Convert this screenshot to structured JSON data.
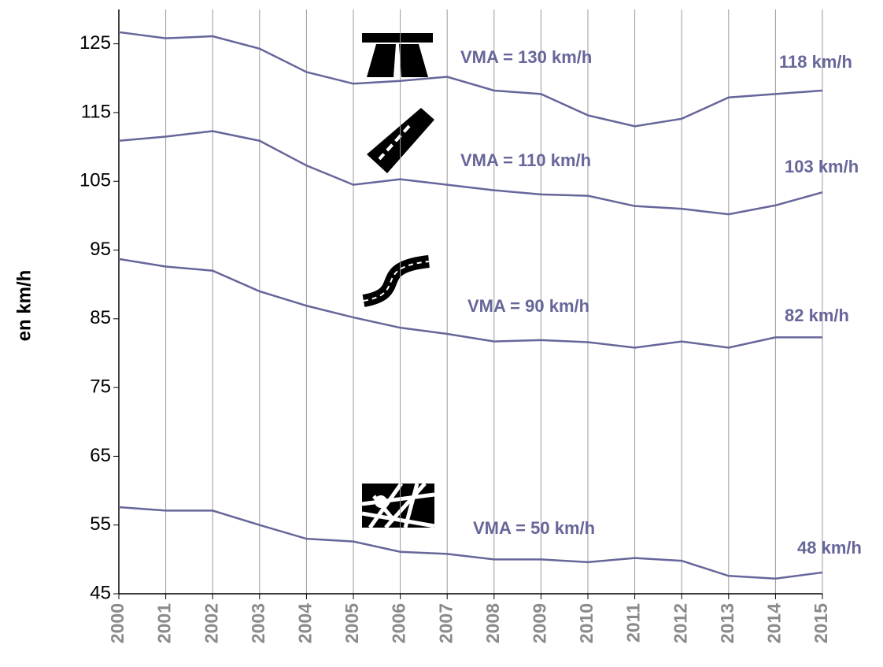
{
  "chart_data": {
    "type": "line",
    "y_label": "en km/h",
    "categories": [
      "2000",
      "2001",
      "2002",
      "2003",
      "2004",
      "2005",
      "2006",
      "2007",
      "2008",
      "2009",
      "2010",
      "2011",
      "2012",
      "2013",
      "2014",
      "2015"
    ],
    "series": [
      {
        "color": "#66669a",
        "annotation": "VMA = 130 km/h",
        "end_label": "118 km/h",
        "values": [
          126.7,
          125.8,
          126.1,
          124.3,
          120.9,
          119.2,
          119.6,
          120.2,
          118.2,
          117.7,
          114.6,
          113.0,
          114.1,
          117.2,
          117.7,
          118.2
        ]
      },
      {
        "color": "#66669a",
        "annotation": "VMA = 110 km/h",
        "end_label": "103 km/h",
        "values": [
          110.9,
          111.5,
          112.3,
          110.9,
          107.3,
          104.5,
          105.3,
          104.5,
          103.7,
          103.1,
          102.9,
          101.4,
          101.0,
          100.2,
          101.5,
          103.4
        ]
      },
      {
        "color": "#66669a",
        "annotation": "VMA = 90 km/h",
        "end_label": "82 km/h",
        "values": [
          93.7,
          92.6,
          92.0,
          89.0,
          86.9,
          85.2,
          83.7,
          82.8,
          81.7,
          81.9,
          81.6,
          80.8,
          81.7,
          80.8,
          82.3,
          82.3
        ]
      },
      {
        "color": "#66669a",
        "annotation": "VMA = 50 km/h",
        "end_label": "48 km/h",
        "values": [
          57.6,
          57.1,
          57.1,
          55.0,
          53.0,
          52.6,
          51.1,
          50.8,
          50.0,
          50.0,
          49.6,
          50.2,
          49.8,
          47.6,
          47.2,
          48.1
        ]
      }
    ],
    "ylim": [
      45,
      130
    ],
    "yticks": [
      45,
      55,
      65,
      75,
      85,
      95,
      105,
      115,
      125
    ],
    "grid": "x"
  }
}
